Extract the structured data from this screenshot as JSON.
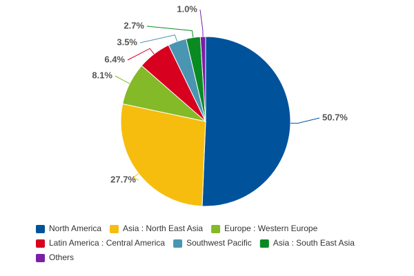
{
  "chart_data": {
    "type": "pie",
    "categories": [
      "North America",
      "Asia : North East Asia",
      "Europe : Western Europe",
      "Latin America : Central America",
      "Southwest Pacific",
      "Asia : South East Asia",
      "Others"
    ],
    "values": [
      50.7,
      27.7,
      8.1,
      6.4,
      3.5,
      2.7,
      1.0
    ],
    "value_labels": [
      "50.7%",
      "27.7%",
      "8.1%",
      "6.4%",
      "3.5%",
      "2.7%",
      "1.0%"
    ],
    "colors": [
      "#00529b",
      "#f6bd0f",
      "#84b928",
      "#d7001e",
      "#4a95b2",
      "#0a8a22",
      "#7a1fa6"
    ],
    "legend": "bottom"
  }
}
